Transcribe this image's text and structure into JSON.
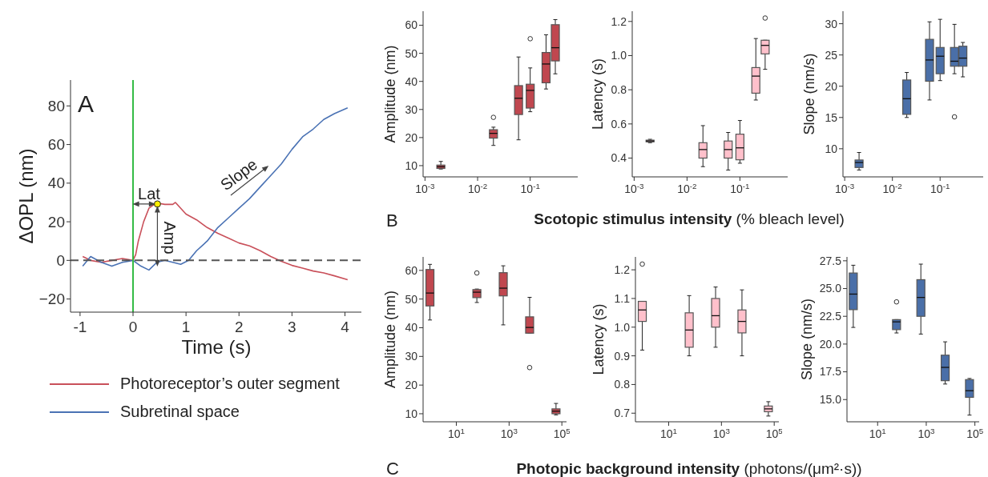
{
  "chart_data": [
    {
      "type": "line",
      "xlabel": "Time (s)",
      "ylabel": "ΔOPL (nm)",
      "xlim": [
        -1.18,
        4.31
      ],
      "xticks": [
        -1,
        0,
        1,
        2,
        3,
        4
      ],
      "ylim": [
        -26.8,
        93.4
      ],
      "yticks": [
        {
          "value": -20,
          "label": "−20"
        },
        0,
        20,
        40,
        60,
        80
      ],
      "legend": "bottom",
      "ref_lines": [
        {
          "axis": "x",
          "value": 0,
          "color": "#33bb44",
          "line_style": "solid"
        },
        {
          "axis": "y",
          "value": 0,
          "color": "#555555",
          "line_style": "dashed"
        }
      ],
      "annotations": [
        "A",
        "Lat",
        "Amp",
        "Slope"
      ],
      "series": [
        {
          "name": "Photoreceptor’s outer segment",
          "color": "#c9505a",
          "x": [
            -0.95,
            -0.8,
            -0.6,
            -0.4,
            -0.2,
            0,
            0.05,
            0.1,
            0.2,
            0.3,
            0.4,
            0.5,
            0.6,
            0.75,
            0.8,
            0.9,
            1.0,
            1.2,
            1.4,
            1.6,
            1.8,
            2.0,
            2.2,
            2.4,
            2.6,
            2.8,
            3.0,
            3.2,
            3.4,
            3.6,
            3.8,
            4.05
          ],
          "values": [
            2,
            0,
            -1,
            0,
            1,
            0,
            3,
            10,
            20,
            27,
            29,
            29.5,
            29,
            29,
            30,
            27,
            24,
            21,
            17,
            14,
            11.5,
            9,
            7.5,
            5,
            2,
            -0.5,
            -2.6,
            -4,
            -5.5,
            -6.5,
            -8,
            -10
          ]
        },
        {
          "name": "Subretinal space",
          "color": "#4a72b4",
          "x": [
            -0.95,
            -0.8,
            -0.6,
            -0.4,
            -0.2,
            0,
            0.15,
            0.3,
            0.45,
            0.6,
            0.75,
            0.9,
            1.05,
            1.2,
            1.4,
            1.6,
            1.8,
            2.0,
            2.2,
            2.4,
            2.6,
            2.8,
            3.0,
            3.2,
            3.4,
            3.6,
            3.8,
            4.05
          ],
          "values": [
            -3,
            2,
            -1,
            -3,
            -1,
            0,
            -3,
            -5,
            -1,
            0,
            -1,
            -2,
            0,
            5,
            10,
            17,
            22,
            27,
            32,
            38,
            44,
            50,
            57.5,
            64,
            68,
            73,
            76,
            79
          ]
        },
        {
          "type": "scatter",
          "color": "#ffee00",
          "marker": "circle",
          "x": [
            0.46
          ],
          "values": [
            29.2
          ]
        }
      ]
    },
    {
      "type": "box",
      "ylabel": "Amplitude (nm)",
      "x": [
        0.002,
        0.02,
        0.06,
        0.1,
        0.2,
        0.3
      ],
      "log": "x",
      "xlim": [
        0.00092,
        0.8
      ],
      "xticks": [
        {
          "value": 0.001,
          "label": "10$^{-3}$"
        },
        {
          "value": 0.01,
          "label": "10$^{-2}$"
        },
        {
          "value": 0.1,
          "label": "10$^{-1}$"
        }
      ],
      "ylim": [
        6,
        65
      ],
      "yticks": [
        10,
        20,
        30,
        40,
        50,
        60
      ],
      "color": "#c0474f",
      "annotations": [
        "B"
      ],
      "boxes": [
        {
          "low": 8.8,
          "q1": 9,
          "median": 9.6,
          "q3": 10.2,
          "high": 11.5
        },
        {
          "low": 17.2,
          "q1": 19.8,
          "median": 21.5,
          "q3": 22.8,
          "high": 23.7,
          "outliers": [
            27.2
          ]
        },
        {
          "low": 19.2,
          "q1": 28.2,
          "median": 34,
          "q3": 38.5,
          "high": 48.7
        },
        {
          "low": 29.2,
          "q1": 30.5,
          "median": 36.8,
          "q3": 39,
          "high": 44.8,
          "outliers": [
            55.2
          ]
        },
        {
          "low": 37.3,
          "q1": 39.5,
          "median": 46.2,
          "q3": 50.3,
          "high": 56.6
        },
        {
          "low": 42.7,
          "q1": 47.3,
          "median": 52,
          "q3": 60.2,
          "high": 62
        }
      ]
    },
    {
      "type": "box",
      "ylabel": "Latency (s)",
      "xlabel": "Scotopic stimulus intensity (% bleach level)",
      "x": [
        0.002,
        0.02,
        0.06,
        0.1,
        0.2,
        0.3
      ],
      "log": "x",
      "xlim": [
        0.00092,
        0.8
      ],
      "xticks": [
        {
          "value": 0.001,
          "label": "10$^{-3}$"
        },
        {
          "value": 0.01,
          "label": "10$^{-2}$"
        },
        {
          "value": 0.1,
          "label": "10$^{-1}$"
        }
      ],
      "ylim": [
        0.29,
        1.26
      ],
      "yticks": [
        0.4,
        0.6,
        0.8,
        {
          "value": 1,
          "label": "1.0"
        },
        1.2
      ],
      "color": "#ffc0cb",
      "boxes": [
        {
          "low": 0.49,
          "q1": 0.495,
          "median": 0.5,
          "q3": 0.505,
          "high": 0.51
        },
        {
          "low": 0.35,
          "q1": 0.4,
          "median": 0.45,
          "q3": 0.49,
          "high": 0.59
        },
        {
          "low": 0.33,
          "q1": 0.4,
          "median": 0.45,
          "q3": 0.5,
          "high": 0.55
        },
        {
          "low": 0.37,
          "q1": 0.39,
          "median": 0.46,
          "q3": 0.54,
          "high": 0.62
        },
        {
          "low": 0.74,
          "q1": 0.78,
          "median": 0.88,
          "q3": 0.93,
          "high": 1.1
        },
        {
          "low": 0.92,
          "q1": 1.01,
          "median": 1.06,
          "q3": 1.09,
          "high": 1.09,
          "outliers": [
            1.22
          ]
        }
      ]
    },
    {
      "type": "box",
      "ylabel": "Slope (nm/s)",
      "x": [
        0.002,
        0.02,
        0.06,
        0.1,
        0.2,
        0.3
      ],
      "log": "x",
      "xlim": [
        0.00092,
        0.8
      ],
      "xticks": [
        {
          "value": 0.001,
          "label": "10$^{-3}$"
        },
        {
          "value": 0.01,
          "label": "10$^{-2}$"
        },
        {
          "value": 0.1,
          "label": "10$^{-1}$"
        }
      ],
      "ylim": [
        5.5,
        32
      ],
      "yticks": [
        10,
        15,
        20,
        25,
        30
      ],
      "color": "#4a6fa8",
      "boxes": [
        {
          "low": 6.6,
          "q1": 7,
          "median": 7.8,
          "q3": 8.2,
          "high": 9.4
        },
        {
          "low": 15,
          "q1": 15.5,
          "median": 18,
          "q3": 21,
          "high": 22.2
        },
        {
          "low": 17.8,
          "q1": 20.8,
          "median": 24.2,
          "q3": 27.5,
          "high": 30.3
        },
        {
          "low": 20.9,
          "q1": 22,
          "median": 24.8,
          "q3": 26.2,
          "high": 30.7
        },
        {
          "low": 22,
          "q1": 23.2,
          "median": 24,
          "q3": 26.2,
          "high": 29.9,
          "outliers": [
            15.1
          ]
        },
        {
          "low": 21.5,
          "q1": 23.2,
          "median": 24.5,
          "q3": 26.4,
          "high": 27
        }
      ]
    },
    {
      "type": "box",
      "ylabel": "Amplitude (nm)",
      "x": [
        1,
        60,
        600,
        6000,
        60000
      ],
      "log": "x",
      "xlim": [
        0.55,
        150000
      ],
      "xticks": [
        {
          "value": 10,
          "label": "10$^{1}$"
        },
        {
          "value": 1000,
          "label": "10$^{3}$"
        },
        {
          "value": 100000,
          "label": "10$^{5}$"
        }
      ],
      "ylim": [
        7.2,
        64.7
      ],
      "yticks": [
        10,
        20,
        30,
        40,
        50,
        60
      ],
      "color": "#c0474f",
      "annotations": [
        "C"
      ],
      "boxes": [
        {
          "low": 42.7,
          "q1": 47.6,
          "median": 52.1,
          "q3": 60.3,
          "high": 62.1
        },
        {
          "low": 48.8,
          "q1": 50.5,
          "median": 52.4,
          "q3": 53.3,
          "high": 53.5,
          "outliers": [
            59.1
          ]
        },
        {
          "low": 41,
          "q1": 51.1,
          "median": 53.8,
          "q3": 59.2,
          "high": 61.6
        },
        {
          "low": 38.1,
          "q1": 38.1,
          "median": 40.1,
          "q3": 43.8,
          "high": 50.6,
          "outliers": [
            26.1
          ]
        },
        {
          "low": 9.6,
          "q1": 10,
          "median": 10.9,
          "q3": 11.7,
          "high": 13.6
        }
      ]
    },
    {
      "type": "box",
      "ylabel": "Latency (s)",
      "xlabel": "Photopic background intensity (photons/(μm²·s))",
      "x": [
        1,
        60,
        600,
        6000,
        60000
      ],
      "log": "x",
      "xlim": [
        0.55,
        150000
      ],
      "xticks": [
        {
          "value": 10,
          "label": "10$^{1}$"
        },
        {
          "value": 1000,
          "label": "10$^{3}$"
        },
        {
          "value": 100000,
          "label": "10$^{5}$"
        }
      ],
      "ylim": [
        0.67,
        1.245
      ],
      "yticks": [
        0.7,
        0.8,
        0.9,
        {
          "value": 1,
          "label": "1.0"
        },
        1.1,
        1.2
      ],
      "color": "#ffc0cb",
      "boxes": [
        {
          "low": 0.92,
          "q1": 1.02,
          "median": 1.06,
          "q3": 1.09,
          "high": 1.09,
          "outliers": [
            1.22
          ]
        },
        {
          "low": 0.9,
          "q1": 0.93,
          "median": 0.99,
          "q3": 1.05,
          "high": 1.11
        },
        {
          "low": 0.93,
          "q1": 1,
          "median": 1.04,
          "q3": 1.1,
          "high": 1.14
        },
        {
          "low": 0.9,
          "q1": 0.98,
          "median": 1.02,
          "q3": 1.06,
          "high": 1.13
        },
        {
          "low": 0.69,
          "q1": 0.705,
          "median": 0.715,
          "q3": 0.725,
          "high": 0.74
        }
      ]
    },
    {
      "type": "box",
      "ylabel": "Slope (nm/s)",
      "x": [
        1,
        60,
        600,
        6000,
        60000
      ],
      "log": "x",
      "xlim": [
        0.55,
        150000
      ],
      "xticks": [
        {
          "value": 10,
          "label": "10$^{1}$"
        },
        {
          "value": 1000,
          "label": "10$^{3}$"
        },
        {
          "value": 100000,
          "label": "10$^{5}$"
        }
      ],
      "ylim": [
        13,
        27.85
      ],
      "yticks": [
        {
          "value": 15,
          "label": "15.0"
        },
        17.5,
        {
          "value": 20,
          "label": "20.0"
        },
        22.5,
        {
          "value": 25,
          "label": "25.0"
        },
        27.5
      ],
      "color": "#4a6fa8",
      "boxes": [
        {
          "low": 21.5,
          "q1": 23.1,
          "median": 24.5,
          "q3": 26.4,
          "high": 27.1
        },
        {
          "low": 21,
          "q1": 21.3,
          "median": 22,
          "q3": 22.2,
          "high": 22.2,
          "outliers": [
            23.8
          ]
        },
        {
          "low": 20.9,
          "q1": 22.5,
          "median": 24.2,
          "q3": 25.8,
          "high": 27.2
        },
        {
          "low": 16.4,
          "q1": 16.7,
          "median": 17.9,
          "q3": 19,
          "high": 20.2
        },
        {
          "low": 13.6,
          "q1": 15.2,
          "median": 15.8,
          "q3": 16.8,
          "high": 16.9
        }
      ]
    }
  ]
}
